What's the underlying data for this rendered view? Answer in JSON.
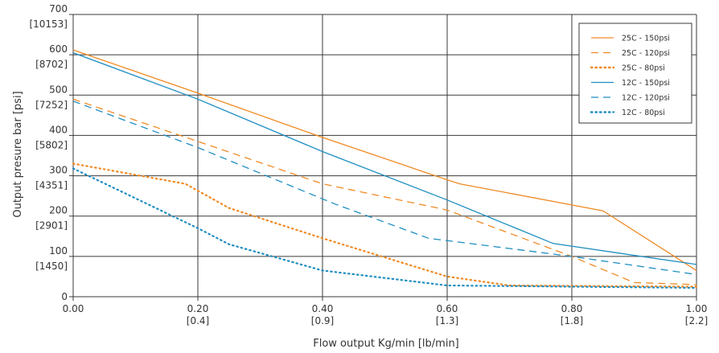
{
  "chart_data": {
    "type": "line",
    "title": "",
    "xlabel": "Flow output Kg/min [lb/min]",
    "ylabel": "Output presure bar [psi]",
    "xlim": [
      0,
      1.0
    ],
    "ylim": [
      0,
      700
    ],
    "grid": true,
    "legend_position": "top-right",
    "x_ticks": [
      {
        "value": 0.0,
        "label": "0.00",
        "sub": ""
      },
      {
        "value": 0.2,
        "label": "0.20",
        "sub": "[0.4]"
      },
      {
        "value": 0.4,
        "label": "0.40",
        "sub": "[0.9]"
      },
      {
        "value": 0.6,
        "label": "0.60",
        "sub": "[1.3]"
      },
      {
        "value": 0.8,
        "label": "0.80",
        "sub": "[1.8]"
      },
      {
        "value": 1.0,
        "label": "1.00",
        "sub": "[2.2]"
      }
    ],
    "y_ticks": [
      {
        "value": 0,
        "label": "0",
        "sub": ""
      },
      {
        "value": 100,
        "label": "100",
        "sub": "[1450]"
      },
      {
        "value": 200,
        "label": "200",
        "sub": "[2901]"
      },
      {
        "value": 300,
        "label": "300",
        "sub": "[4351]"
      },
      {
        "value": 400,
        "label": "400",
        "sub": "[5802]"
      },
      {
        "value": 500,
        "label": "500",
        "sub": "[7252]"
      },
      {
        "value": 600,
        "label": "600",
        "sub": "[8702]"
      },
      {
        "value": 700,
        "label": "700",
        "sub": "[10153]"
      }
    ],
    "series": [
      {
        "name": "25C - 150psi",
        "color": "#F08A24",
        "dash": "solid",
        "points": [
          [
            0.0,
            612
          ],
          [
            0.2,
            505
          ],
          [
            0.4,
            395
          ],
          [
            0.6,
            290
          ],
          [
            0.62,
            280
          ],
          [
            0.85,
            213
          ],
          [
            1.0,
            65
          ]
        ]
      },
      {
        "name": "25C - 120psi",
        "color": "#F08A24",
        "dash": "dashed",
        "points": [
          [
            0.0,
            490
          ],
          [
            0.2,
            385
          ],
          [
            0.4,
            280
          ],
          [
            0.6,
            215
          ],
          [
            0.8,
            100
          ],
          [
            0.9,
            35
          ],
          [
            1.0,
            30
          ]
        ]
      },
      {
        "name": "25C - 80psi",
        "color": "#F08A24",
        "dash": "dotted",
        "points": [
          [
            0.0,
            330
          ],
          [
            0.18,
            280
          ],
          [
            0.25,
            220
          ],
          [
            0.4,
            145
          ],
          [
            0.6,
            50
          ],
          [
            0.7,
            28
          ],
          [
            1.0,
            25
          ]
        ]
      },
      {
        "name": "12C - 150psi",
        "color": "#1F8EC1",
        "dash": "solid",
        "points": [
          [
            0.0,
            605
          ],
          [
            0.2,
            490
          ],
          [
            0.4,
            360
          ],
          [
            0.6,
            240
          ],
          [
            0.77,
            132
          ],
          [
            1.0,
            80
          ]
        ]
      },
      {
        "name": "12C - 120psi",
        "color": "#1F8EC1",
        "dash": "dashed",
        "points": [
          [
            0.0,
            485
          ],
          [
            0.2,
            370
          ],
          [
            0.42,
            230
          ],
          [
            0.57,
            145
          ],
          [
            0.8,
            100
          ],
          [
            1.0,
            55
          ]
        ]
      },
      {
        "name": "12C - 80psi",
        "color": "#1F8EC1",
        "dash": "dotted",
        "points": [
          [
            0.0,
            318
          ],
          [
            0.2,
            170
          ],
          [
            0.25,
            130
          ],
          [
            0.4,
            65
          ],
          [
            0.6,
            28
          ],
          [
            1.0,
            22
          ]
        ]
      }
    ]
  }
}
